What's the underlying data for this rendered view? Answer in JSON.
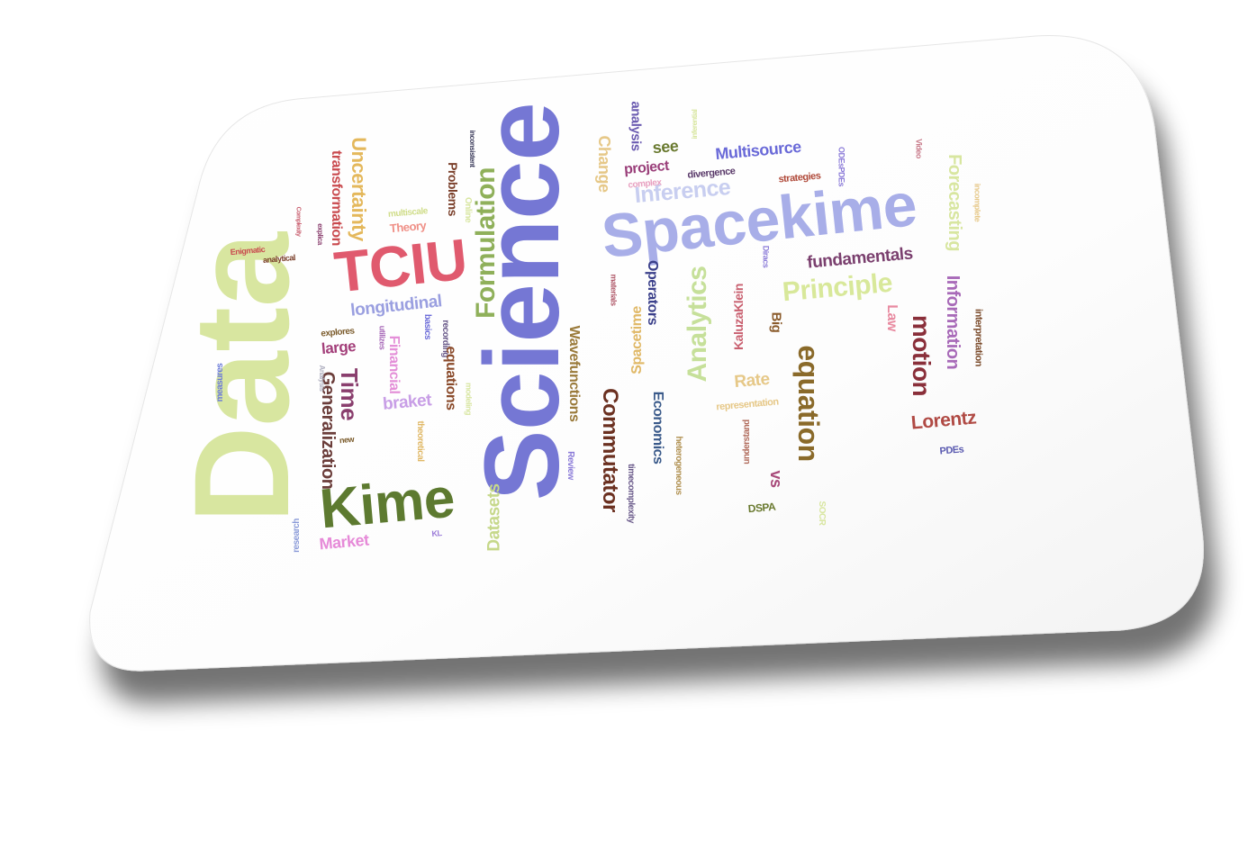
{
  "scene": "tilted white rounded card with a word cloud",
  "words": [
    {
      "text": "Data",
      "color": "#d8e6a0"
    },
    {
      "text": "Science",
      "color": "#7577d4"
    },
    {
      "text": "Spacekime",
      "color": "#a8aee8"
    },
    {
      "text": "TCIU",
      "color": "#e05a6e"
    },
    {
      "text": "Kime",
      "color": "#5d7a30"
    },
    {
      "text": "Formulation",
      "color": "#8fb05a"
    },
    {
      "text": "Uncertainty",
      "color": "#e4b85c"
    },
    {
      "text": "transformation",
      "color": "#c94a4e"
    },
    {
      "text": "Theory",
      "color": "#ef8f86"
    },
    {
      "text": "multiscale",
      "color": "#d0dd8a"
    },
    {
      "text": "longitudinal",
      "color": "#9a9fe0"
    },
    {
      "text": "Time",
      "color": "#8a3f6e"
    },
    {
      "text": "large",
      "color": "#a33f7a"
    },
    {
      "text": "explores",
      "color": "#7a5a2a"
    },
    {
      "text": "Generalization",
      "color": "#6b3d3a"
    },
    {
      "text": "Financial",
      "color": "#e48fd8"
    },
    {
      "text": "braket",
      "color": "#c89ee6"
    },
    {
      "text": "Market",
      "color": "#e68ad8"
    },
    {
      "text": "Datasets",
      "color": "#c6d88a"
    },
    {
      "text": "Wavefunctions",
      "color": "#9a7a3a"
    },
    {
      "text": "Commutator",
      "color": "#6b3020"
    },
    {
      "text": "Operators",
      "color": "#3a3f8a"
    },
    {
      "text": "Economics",
      "color": "#3a5a8a"
    },
    {
      "text": "Spacetime",
      "color": "#e0b866"
    },
    {
      "text": "Analytics",
      "color": "#c6e09a"
    },
    {
      "text": "Inference",
      "color": "#c8cef0"
    },
    {
      "text": "project",
      "color": "#9a3f7a"
    },
    {
      "text": "Multisource",
      "color": "#6a6ad8"
    },
    {
      "text": "fundamentals",
      "color": "#7a3f6e"
    },
    {
      "text": "Principle",
      "color": "#d8e89a"
    },
    {
      "text": "equation",
      "color": "#8a6a2a"
    },
    {
      "text": "motion",
      "color": "#8a2f3a"
    },
    {
      "text": "Lorentz",
      "color": "#b04a44"
    },
    {
      "text": "Information",
      "color": "#a86ab8"
    },
    {
      "text": "Forecasting",
      "color": "#d8e6a0"
    },
    {
      "text": "Rate",
      "color": "#e6c888"
    },
    {
      "text": "Big",
      "color": "#8a5a2a"
    },
    {
      "text": "KaluzaKlein",
      "color": "#c96070"
    },
    {
      "text": "Change",
      "color": "#e6c888"
    },
    {
      "text": "analysis",
      "color": "#6a5ab0"
    },
    {
      "text": "see",
      "color": "#6a7a30"
    },
    {
      "text": "divergence",
      "color": "#5a3a6a"
    },
    {
      "text": "complex",
      "color": "#e8a0c0"
    },
    {
      "text": "strategies",
      "color": "#b04a3a"
    },
    {
      "text": "Law",
      "color": "#e88aa0"
    },
    {
      "text": "representation",
      "color": "#e6c888"
    },
    {
      "text": "understand",
      "color": "#b06a5a"
    },
    {
      "text": "heterogeneous",
      "color": "#b09050"
    },
    {
      "text": "timecomplexity",
      "color": "#6a5a8a"
    },
    {
      "text": "Review",
      "color": "#8a7ad8"
    },
    {
      "text": "theoretical",
      "color": "#e0b866"
    },
    {
      "text": "modeling",
      "color": "#d8e6a0"
    },
    {
      "text": "recording",
      "color": "#6a5a8a"
    },
    {
      "text": "basics",
      "color": "#6a6ad8"
    },
    {
      "text": "equations",
      "color": "#8a4a2a"
    },
    {
      "text": "Problems",
      "color": "#7a3f2a"
    },
    {
      "text": "Online",
      "color": "#d8e6a0"
    },
    {
      "text": "inconsistent",
      "color": "#3a3a5a"
    },
    {
      "text": "materials",
      "color": "#b05a6a"
    },
    {
      "text": "Diracs",
      "color": "#8a7ad8"
    },
    {
      "text": "ODEsPDEs",
      "color": "#8a7ad8"
    },
    {
      "text": "Video",
      "color": "#c87a8a"
    },
    {
      "text": "incomplete",
      "color": "#e6c888"
    },
    {
      "text": "interpretation",
      "color": "#7a4a2a"
    },
    {
      "text": "PDEs",
      "color": "#5a5ab0"
    },
    {
      "text": "SOCR",
      "color": "#d8e6a0"
    },
    {
      "text": "DSPA",
      "color": "#6a7a30"
    },
    {
      "text": "vs",
      "color": "#a84a7a"
    },
    {
      "text": "KL",
      "color": "#9a7ad8"
    },
    {
      "text": "research",
      "color": "#8a9ad8"
    },
    {
      "text": "new",
      "color": "#7a5a2a"
    },
    {
      "text": "measures",
      "color": "#6a7ad8"
    },
    {
      "text": "utilizes",
      "color": "#a86ab8"
    },
    {
      "text": "Enigmatic",
      "color": "#c94a4e"
    },
    {
      "text": "analytical",
      "color": "#7a3f2a"
    },
    {
      "text": "Complexity",
      "color": "#c96070"
    },
    {
      "text": "explica",
      "color": "#8a3f6e"
    },
    {
      "text": "inferential",
      "color": "#d8e6a0"
    },
    {
      "text": "Analysis",
      "color": "#b0b0c0"
    }
  ]
}
